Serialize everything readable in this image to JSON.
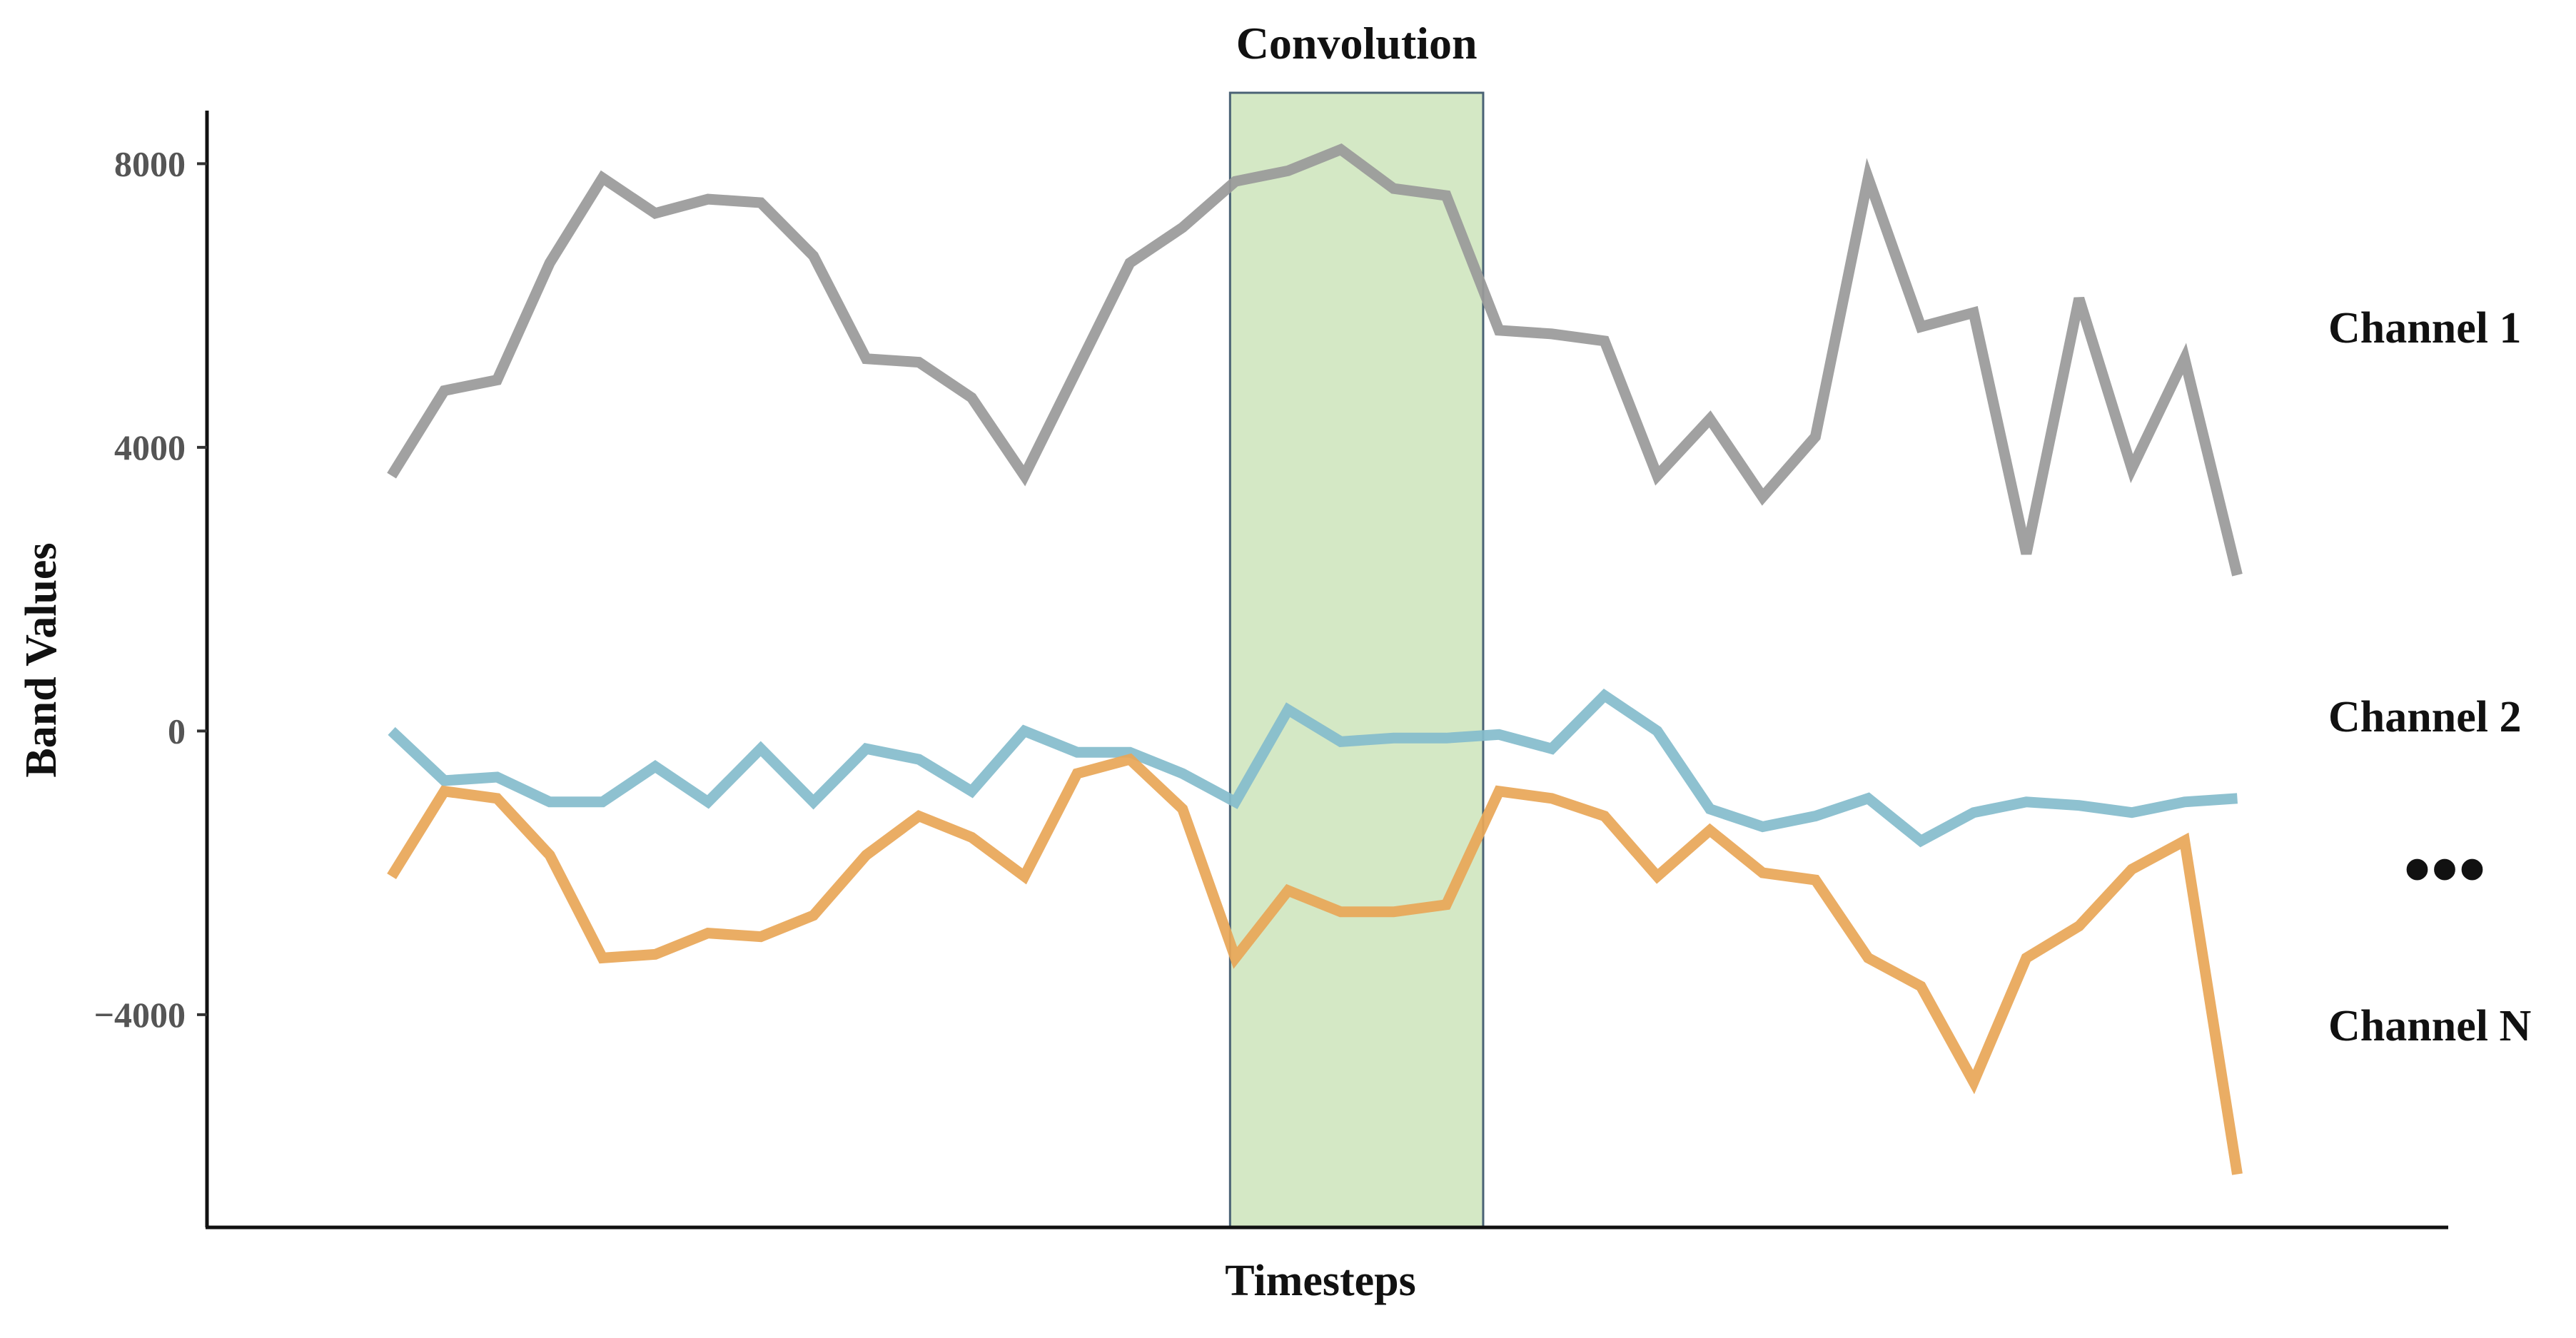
{
  "chart_data": {
    "type": "line",
    "xlabel": "Timesteps",
    "ylabel": "Band Values",
    "ylim": [
      -7000,
      9000
    ],
    "yticks": [
      8000,
      4000,
      0,
      -4000
    ],
    "ytick_labels": [
      "8000",
      "4000",
      "0",
      "−4000"
    ],
    "x": [
      1,
      2,
      3,
      4,
      5,
      6,
      7,
      8,
      9,
      10,
      11,
      12,
      13,
      14,
      15,
      16,
      17,
      18,
      19,
      20,
      21,
      22,
      23,
      24,
      25,
      26,
      27,
      28,
      29,
      30,
      31,
      32,
      33,
      34,
      35,
      36
    ],
    "xlim": [
      -2.5,
      40
    ],
    "ellipsis_label": "•••",
    "window": {
      "label": "Convolution",
      "x_start": 16.9,
      "x_end": 21.7,
      "fill": "#d4e8c5",
      "stroke": "#4a6275"
    },
    "series": [
      {
        "name": "Channel 1",
        "color": "#999999",
        "values": [
          3600,
          4800,
          4950,
          6600,
          7800,
          7300,
          7500,
          7450,
          6700,
          5250,
          5200,
          4700,
          3600,
          5100,
          6600,
          7100,
          7750,
          7900,
          8200,
          7650,
          7550,
          5650,
          5600,
          5500,
          3600,
          4400,
          3300,
          4150,
          7800,
          5700,
          5900,
          2500,
          6100,
          3700,
          5250,
          2200
        ]
      },
      {
        "name": "Channel 2",
        "color": "#84bccc",
        "values": [
          0,
          -700,
          -650,
          -1000,
          -1000,
          -500,
          -1000,
          -250,
          -1000,
          -250,
          -400,
          -850,
          0,
          -300,
          -300,
          -600,
          -1000,
          300,
          -150,
          -100,
          -100,
          -50,
          -250,
          500,
          0,
          -1100,
          -1350,
          -1200,
          -950,
          -1550,
          -1150,
          -1000,
          -1050,
          -1150,
          -1000,
          -950
        ]
      },
      {
        "name": "Channel N",
        "color": "#e8a657",
        "values": [
          -2050,
          -850,
          -950,
          -1750,
          -3200,
          -3150,
          -2850,
          -2900,
          -2600,
          -1750,
          -1200,
          -1500,
          -2050,
          -600,
          -400,
          -1100,
          -3200,
          -2250,
          -2550,
          -2550,
          -2450,
          -850,
          -950,
          -1200,
          -2050,
          -1400,
          -2000,
          -2100,
          -3200,
          -3600,
          -4950,
          -3200,
          -2750,
          -1950,
          -1550,
          -6250
        ]
      }
    ]
  }
}
